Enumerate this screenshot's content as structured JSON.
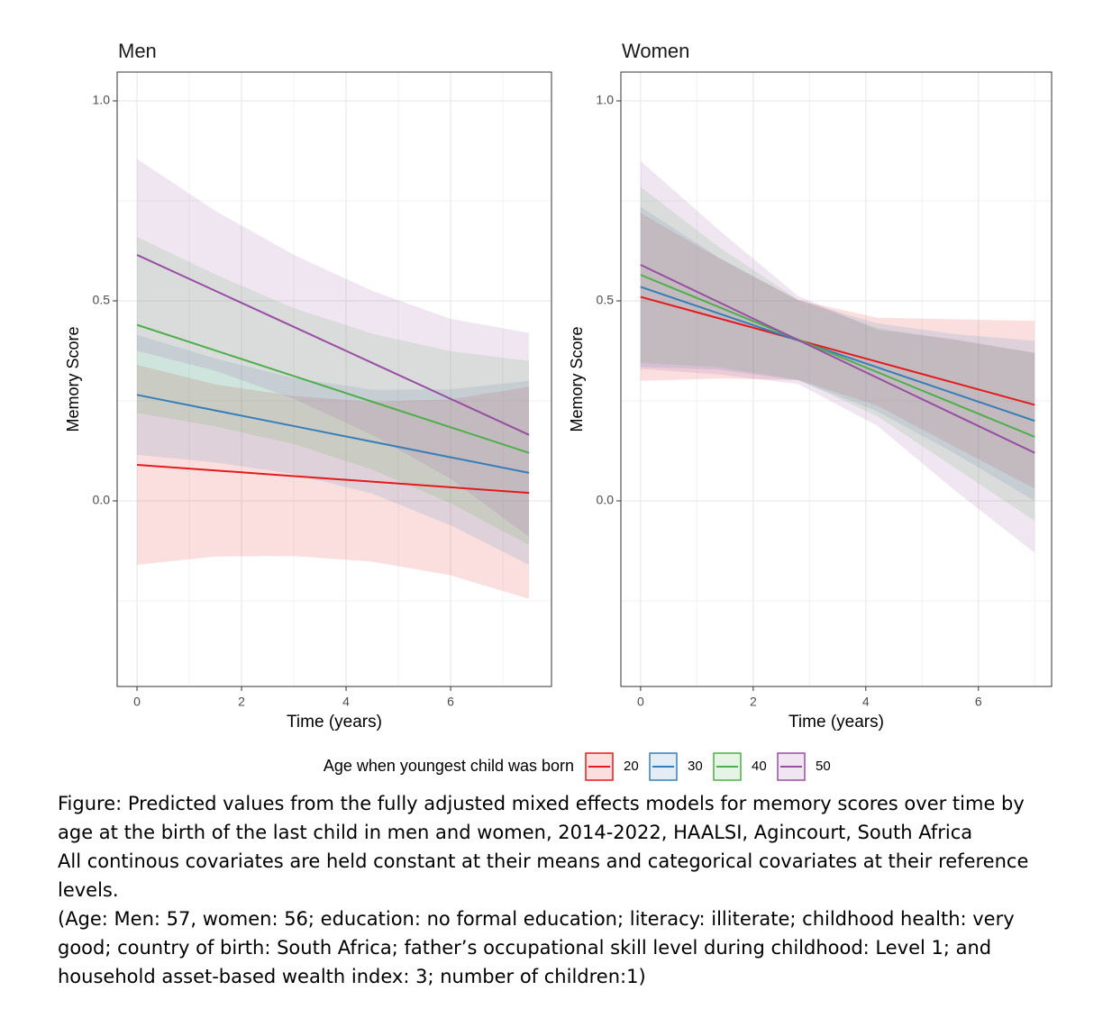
{
  "chart_data": [
    {
      "type": "line",
      "title": "Men",
      "xlabel": "Time (years)",
      "ylabel": "Memory Score",
      "x": [
        0,
        1.5,
        3,
        4.5,
        6,
        7.5
      ],
      "xlim": [
        -0.38,
        7.93
      ],
      "ylim": [
        -0.464,
        1.072
      ],
      "xticks": [
        0,
        2,
        4,
        6
      ],
      "yticks": [
        {
          "value": 0,
          "label": "0.0"
        },
        {
          "value": 0.5,
          "label": "0.5"
        },
        {
          "value": 1,
          "label": "1.0"
        }
      ],
      "grid": true,
      "series": [
        {
          "name": "20",
          "color": "#E41A1C",
          "values": [
            0.09,
            0.076,
            0.062,
            0.048,
            0.034,
            0.02
          ],
          "lower": [
            -0.16,
            -0.139,
            -0.138,
            -0.152,
            -0.186,
            -0.245
          ],
          "upper": [
            0.34,
            0.291,
            0.262,
            0.248,
            0.254,
            0.285
          ]
        },
        {
          "name": "30",
          "color": "#377EB8",
          "values": [
            0.265,
            0.226,
            0.187,
            0.148,
            0.109,
            0.07
          ],
          "lower": [
            0.115,
            0.096,
            0.067,
            0.018,
            -0.061,
            -0.16
          ],
          "upper": [
            0.415,
            0.356,
            0.307,
            0.278,
            0.279,
            0.3
          ]
        },
        {
          "name": "40",
          "color": "#4DAF4A",
          "values": [
            0.44,
            0.376,
            0.312,
            0.248,
            0.184,
            0.12
          ],
          "lower": [
            0.22,
            0.186,
            0.142,
            0.078,
            -0.006,
            -0.11
          ],
          "upper": [
            0.66,
            0.566,
            0.482,
            0.418,
            0.374,
            0.35
          ]
        },
        {
          "name": "50",
          "color": "#984EA3",
          "values": [
            0.615,
            0.525,
            0.435,
            0.345,
            0.255,
            0.165
          ],
          "lower": [
            0.375,
            0.325,
            0.255,
            0.165,
            0.055,
            -0.09
          ],
          "upper": [
            0.855,
            0.725,
            0.615,
            0.525,
            0.455,
            0.42
          ]
        }
      ]
    },
    {
      "type": "line",
      "title": "Women",
      "xlabel": "Time (years)",
      "ylabel": "Memory Score",
      "x": [
        0,
        1.4,
        2.8,
        4.2,
        5.6,
        7
      ],
      "xlim": [
        -0.35,
        7.3
      ],
      "ylim": [
        -0.464,
        1.072
      ],
      "xticks": [
        0,
        2,
        4,
        6
      ],
      "yticks": [
        {
          "value": 0,
          "label": "0.0"
        },
        {
          "value": 0.5,
          "label": "0.5"
        },
        {
          "value": 1,
          "label": "1.0"
        }
      ],
      "grid": true,
      "series": [
        {
          "color": "#E41A1C",
          "values": [
            0.51,
            0.456,
            0.402,
            0.348,
            0.294,
            0.24
          ],
          "lower": [
            0.3,
            0.306,
            0.302,
            0.238,
            0.134,
            0.03
          ],
          "upper": [
            0.72,
            0.606,
            0.502,
            0.458,
            0.454,
            0.45
          ]
        },
        {
          "color": "#377EB8",
          "values": [
            0.535,
            0.468,
            0.401,
            0.334,
            0.267,
            0.2
          ],
          "lower": [
            0.335,
            0.328,
            0.301,
            0.224,
            0.117,
            0
          ],
          "upper": [
            0.735,
            0.608,
            0.501,
            0.444,
            0.417,
            0.4
          ]
        },
        {
          "color": "#4DAF4A",
          "values": [
            0.565,
            0.484,
            0.403,
            0.322,
            0.241,
            0.16
          ],
          "lower": [
            0.345,
            0.334,
            0.303,
            0.212,
            0.081,
            -0.05
          ],
          "upper": [
            0.785,
            0.634,
            0.503,
            0.432,
            0.401,
            0.37
          ]
        },
        {
          "color": "#984EA3",
          "values": [
            0.59,
            0.496,
            0.402,
            0.308,
            0.214,
            0.12
          ],
          "lower": [
            0.33,
            0.316,
            0.292,
            0.188,
            0.024,
            -0.13
          ],
          "upper": [
            0.85,
            0.676,
            0.512,
            0.428,
            0.404,
            0.37
          ]
        }
      ]
    }
  ],
  "legend": {
    "title": "Age when youngest child was born"
  },
  "caption": [
    "Figure: Predicted values from the fully adjusted mixed effects models for memory scores over time by age at the birth of the last child in men and women, 2014-2022, HAALSI, Agincourt, South Africa",
    "All continous covariates are held constant at their means and categorical covariates at their reference levels.",
    "(Age: Men: 57, women: 56; education: no formal education; literacy: illiterate; childhood health: very good; country of birth: South Africa; father’s occupational skill level during childhood: Level 1; and household asset-based wealth index: 3; number of children:1)"
  ]
}
